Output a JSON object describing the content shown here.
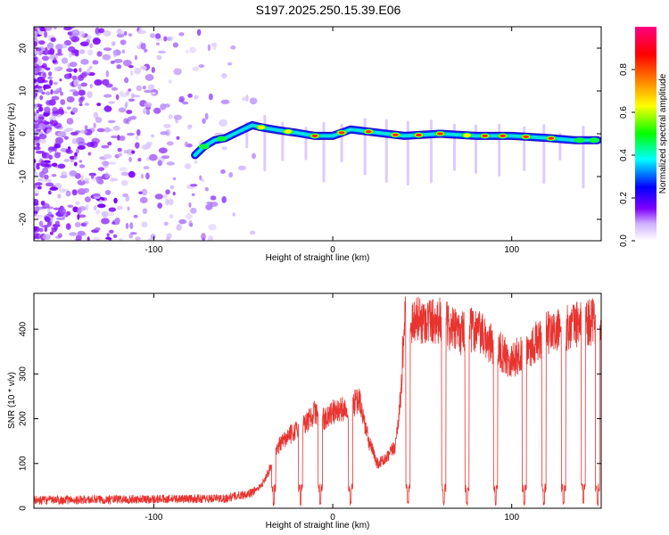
{
  "title": "S197.2025.250.15.39.E06",
  "chart_data": [
    {
      "type": "heatmap",
      "name": "spectrogram",
      "xlabel": "Height of straight line (km)",
      "ylabel": "Frequency (Hz)",
      "xlim": [
        -167,
        150
      ],
      "ylim": [
        -25,
        25
      ],
      "xticks": [
        -100,
        0,
        100
      ],
      "yticks": [
        -20,
        -10,
        0,
        10,
        20
      ],
      "colorbar": {
        "label": "Normalized spectral amplitude",
        "range": [
          0,
          1
        ],
        "ticks": [
          0.0,
          0.2,
          0.4,
          0.6,
          0.8
        ],
        "tick_labels": [
          "0.0",
          "0.2",
          "0.4",
          "0.6",
          "0.8"
        ],
        "colors": [
          "#ffffff",
          "#8000ff",
          "#0000ff",
          "#00ffff",
          "#00ff00",
          "#ffff00",
          "#ff8000",
          "#ff0000",
          "#ff0080"
        ]
      },
      "ridge": {
        "x": [
          -77,
          -72,
          -66,
          -60,
          -55,
          -50,
          -45,
          -40,
          -30,
          -20,
          -10,
          0,
          10,
          20,
          40,
          60,
          80,
          100,
          120,
          135,
          148
        ],
        "freq": [
          -5,
          -3,
          -1.5,
          -1,
          0,
          1,
          2,
          1.5,
          0.8,
          0.2,
          -0.5,
          -0.5,
          1,
          0.5,
          -0.5,
          0,
          -0.5,
          -0.5,
          -1,
          -1.5,
          -1.5
        ]
      }
    },
    {
      "type": "line",
      "name": "snr",
      "xlabel": "Height of straight line (km)",
      "ylabel": "SNR (10 * v/v)",
      "xlim": [
        -167,
        150
      ],
      "ylim": [
        0,
        480
      ],
      "xticks": [
        -100,
        0,
        100
      ],
      "yticks": [
        0,
        100,
        200,
        300,
        400
      ],
      "series_color": "#e8332f",
      "profile": {
        "x": [
          -167,
          -60,
          -45,
          -40,
          -35,
          -30,
          -25,
          -20,
          -15,
          -10,
          -5,
          0,
          5,
          10,
          15,
          20,
          25,
          30,
          35,
          38,
          40,
          45,
          60,
          70,
          80,
          90,
          100,
          110,
          120,
          130,
          140,
          150
        ],
        "snr": [
          18,
          22,
          35,
          50,
          90,
          140,
          160,
          175,
          190,
          215,
          200,
          215,
          220,
          230,
          240,
          150,
          100,
          110,
          140,
          250,
          420,
          420,
          420,
          390,
          400,
          360,
          330,
          360,
          390,
          400,
          420,
          410
        ]
      },
      "dropouts_x": [
        -33,
        -18,
        -7,
        10,
        42,
        62,
        75,
        91,
        107,
        118,
        129,
        140,
        148
      ],
      "dropout_level": 45
    }
  ]
}
